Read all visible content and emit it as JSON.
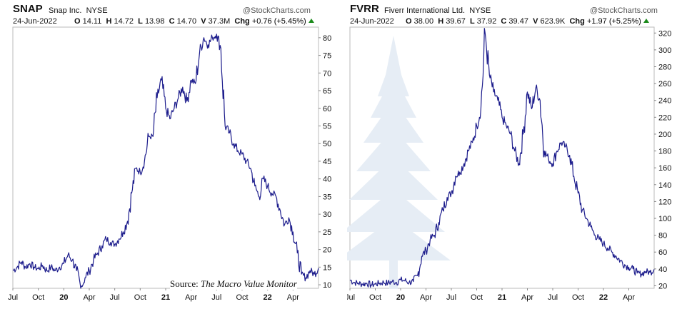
{
  "source": {
    "prefix": "Source: ",
    "title": "The Macro Value Monitor"
  },
  "panels": [
    {
      "ticker": "SNAP",
      "company": "Snap Inc.",
      "exchange": "NYSE",
      "logo": "@StockCharts.com",
      "date": "24-Jun-2022",
      "open_label": "O",
      "open": "14.11",
      "high_label": "H",
      "high": "14.72",
      "low_label": "L",
      "low": "13.98",
      "close_label": "C",
      "close": "14.70",
      "vol_label": "V",
      "volume": "37.3M",
      "chg_label": "Chg",
      "chg": "+0.76 (+5.45%)"
    },
    {
      "ticker": "FVRR",
      "company": "Fiverr International Ltd.",
      "exchange": "NYSE",
      "logo": "@StockCharts.com",
      "date": "24-Jun-2022",
      "open_label": "O",
      "open": "38.00",
      "high_label": "H",
      "high": "39.67",
      "low_label": "L",
      "low": "37.92",
      "close_label": "C",
      "close": "39.47",
      "vol_label": "V",
      "volume": "623.9K",
      "chg_label": "Chg",
      "chg": "+1.97 (+5.25%)"
    }
  ],
  "chart_data": [
    {
      "type": "line",
      "title": "SNAP",
      "line_color": "#1c1c8c",
      "x_ticks": [
        "Jul",
        "Oct",
        "20",
        "Apr",
        "Jul",
        "Oct",
        "21",
        "Apr",
        "Jul",
        "Oct",
        "22",
        "Apr"
      ],
      "x_tick_bold": [
        false,
        false,
        true,
        false,
        false,
        false,
        true,
        false,
        false,
        false,
        true,
        false
      ],
      "y_ticks": [
        10,
        15,
        20,
        25,
        30,
        35,
        40,
        45,
        50,
        55,
        60,
        65,
        70,
        75,
        80
      ],
      "ylim": [
        9,
        83
      ],
      "xlim": [
        0,
        36
      ],
      "grid": false,
      "x": [
        0,
        0.5,
        1,
        1.5,
        2,
        2.5,
        3,
        3.5,
        4,
        4.5,
        5,
        5.5,
        6,
        6.5,
        7,
        7.5,
        8,
        8.5,
        9,
        9.5,
        10,
        10.5,
        11,
        11.5,
        12,
        12.5,
        13,
        13.5,
        14,
        14.5,
        15,
        15.5,
        16,
        16.5,
        17,
        17.5,
        18,
        18.5,
        19,
        19.5,
        20,
        20.5,
        21,
        21.5,
        22,
        22.5,
        23,
        23.5,
        24,
        24.5,
        25,
        25.5,
        26,
        26.5,
        27,
        27.5,
        28,
        28.5,
        29,
        29.5,
        30,
        30.5,
        31,
        31.5,
        32,
        32.5,
        33,
        33.5,
        34,
        34.5,
        35,
        35.5,
        36
      ],
      "y": [
        14,
        15,
        16.5,
        15,
        16,
        15,
        14.5,
        15.5,
        14,
        15,
        14,
        15,
        16,
        18.5,
        17,
        14,
        9,
        12,
        14,
        17,
        19,
        21,
        23,
        22,
        21.5,
        23,
        25,
        28,
        36,
        43,
        42,
        45,
        52,
        52,
        63,
        68,
        60,
        57,
        60,
        63,
        66,
        62,
        68,
        67,
        76,
        80,
        78,
        80,
        81,
        77,
        55,
        53,
        50,
        48,
        47,
        45,
        43,
        38,
        35,
        40,
        38,
        36,
        35,
        31,
        27,
        29,
        25,
        19,
        13,
        12,
        14,
        13,
        14.7
      ]
    },
    {
      "type": "line",
      "title": "FVRR",
      "line_color": "#1c1c8c",
      "x_ticks": [
        "Jul",
        "Oct",
        "20",
        "Apr",
        "Jul",
        "Oct",
        "21",
        "Apr",
        "Jul",
        "Oct",
        "22",
        "Apr"
      ],
      "x_tick_bold": [
        false,
        false,
        true,
        false,
        false,
        false,
        true,
        false,
        false,
        false,
        true,
        false
      ],
      "y_ticks": [
        20,
        40,
        60,
        80,
        100,
        120,
        140,
        160,
        180,
        200,
        220,
        240,
        260,
        280,
        300,
        320
      ],
      "ylim": [
        17,
        327
      ],
      "xlim": [
        0,
        36
      ],
      "grid": false,
      "x": [
        0,
        0.5,
        1,
        1.5,
        2,
        2.5,
        3,
        3.5,
        4,
        4.5,
        5,
        5.5,
        6,
        6.5,
        7,
        7.5,
        8,
        8.5,
        9,
        9.5,
        10,
        10.5,
        11,
        11.5,
        12,
        12.5,
        13,
        13.5,
        14,
        14.5,
        15,
        15.5,
        16,
        16.5,
        17,
        17.5,
        18,
        18.5,
        19,
        19.5,
        20,
        20.5,
        21,
        21.5,
        22,
        22.5,
        23,
        23.5,
        24,
        24.5,
        25,
        25.5,
        26,
        26.5,
        27,
        27.5,
        28,
        28.5,
        29,
        29.5,
        30,
        30.5,
        31,
        31.5,
        32,
        32.5,
        33,
        33.5,
        34,
        34.5,
        35,
        35.5,
        36
      ],
      "y": [
        27,
        24,
        23,
        22,
        23,
        21,
        22,
        23,
        24,
        23,
        25,
        24,
        27,
        26,
        24,
        25,
        32,
        55,
        62,
        75,
        80,
        95,
        110,
        125,
        130,
        150,
        155,
        165,
        180,
        190,
        210,
        230,
        320,
        270,
        250,
        240,
        220,
        210,
        200,
        180,
        165,
        200,
        250,
        230,
        255,
        240,
        180,
        170,
        165,
        180,
        190,
        185,
        175,
        150,
        130,
        110,
        100,
        90,
        80,
        75,
        70,
        65,
        60,
        55,
        50,
        45,
        42,
        40,
        35,
        34,
        37,
        36,
        39.5
      ]
    }
  ]
}
